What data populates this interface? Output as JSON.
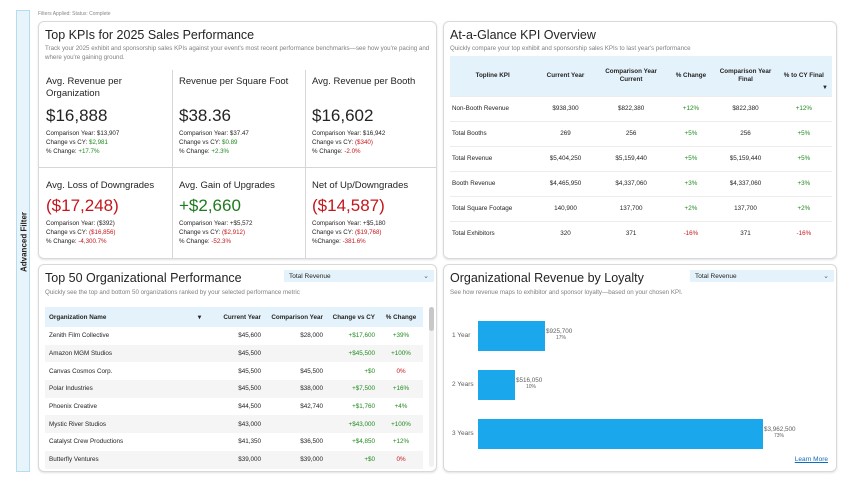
{
  "filters_applied": "Filters Applied: Status: Complete",
  "sidebar": {
    "label": "Advanced Filter"
  },
  "kpi": {
    "title": "Top KPIs for 2025 Sales Performance",
    "subtitle": "Track your 2025 exhibit and sponsorship sales KPIs against your event's most recent performance benchmarks—see how you're pacing and where you're gaining ground.",
    "cells": [
      {
        "label": "Avg. Revenue per Organization",
        "value": "$16,888",
        "comp": "Comparison Year: $13,907",
        "change_prefix": "Change vs CY: ",
        "change": "$2,981",
        "pct_prefix": "% Change: ",
        "pct": "+17.7%"
      },
      {
        "label": "Revenue per Square Foot",
        "value": "$38.36",
        "comp": "Comparison Year: $37.47",
        "change_prefix": "Change vs CY: ",
        "change": "$0.89",
        "pct_prefix": "% Change: ",
        "pct": "+2.3%"
      },
      {
        "label": "Avg. Revenue per Booth",
        "value": "$16,602",
        "comp": "Comparison Year: $16,942",
        "change_prefix": "Change vs CY: ",
        "change": "($340)",
        "pct_prefix": "% Change: ",
        "pct": "-2.0%"
      },
      {
        "label": "Avg. Loss of Downgrades",
        "value": "($17,248)",
        "comp": "Comparison Year: ($392)",
        "change_prefix": "Change vs CY: ",
        "change": "($16,856)",
        "pct_prefix": "% Change: ",
        "pct": "-4,300.7%"
      },
      {
        "label": "Avg. Gain of Upgrades",
        "value": "+$2,660",
        "comp": "Comparison Year: +$5,572",
        "change_prefix": "Change vs CY: ",
        "change": "($2,912)",
        "pct_prefix": "% Change: ",
        "pct": "-52.3%"
      },
      {
        "label": "Net of Up/Downgrades",
        "value": "($14,587)",
        "comp": "Comparison Year: +$5,180",
        "change_prefix": "Change vs CY: ",
        "change": "($19,768)",
        "pct_prefix": "%Change: ",
        "pct": "-381.6%"
      }
    ]
  },
  "glance": {
    "title": "At-a-Glance KPI Overview",
    "subtitle": "Quickly compare your top exhibit and sponsorship sales KPIs to last year's performance",
    "headers": [
      "Topline KPI",
      "Current Year",
      "Comparison Year Current",
      "% Change",
      "Comparison Year Final",
      "% to CY Final"
    ],
    "rows": [
      [
        "Non-Booth Revenue",
        "$938,300",
        "$822,380",
        "+12%",
        "$822,380",
        "+12%"
      ],
      [
        "Total Booths",
        "269",
        "256",
        "+5%",
        "256",
        "+5%"
      ],
      [
        "Total Revenue",
        "$5,404,250",
        "$5,159,440",
        "+5%",
        "$5,159,440",
        "+5%"
      ],
      [
        "Booth Revenue",
        "$4,465,950",
        "$4,337,060",
        "+3%",
        "$4,337,060",
        "+3%"
      ],
      [
        "Total Square Footage",
        "140,900",
        "137,700",
        "+2%",
        "137,700",
        "+2%"
      ],
      [
        "Total Exhibitors",
        "320",
        "371",
        "-16%",
        "371",
        "-16%"
      ]
    ]
  },
  "top50": {
    "title": "Top 50 Organizational Performance",
    "subtitle": "Quickly see the top and bottom 50 organizations ranked by your selected performance metric",
    "dropdown": "Total Revenue",
    "headers": [
      "Organization Name",
      "Current Year",
      "Comparison Year",
      "Change vs CY",
      "% Change"
    ],
    "rows": [
      [
        "Zenith Film Collective",
        "$45,600",
        "$28,000",
        "+$17,600",
        "+39%"
      ],
      [
        "Amazon MGM Studios",
        "$45,500",
        "",
        "+$45,500",
        "+100%"
      ],
      [
        "Canvas Cosmos Corp.",
        "$45,500",
        "$45,500",
        "+$0",
        "0%"
      ],
      [
        "Polar Industries",
        "$45,500",
        "$38,000",
        "+$7,500",
        "+16%"
      ],
      [
        "Phoenix Creative",
        "$44,500",
        "$42,740",
        "+$1,760",
        "+4%"
      ],
      [
        "Mystic River Studios",
        "$43,000",
        "",
        "+$43,000",
        "+100%"
      ],
      [
        "Catalyst Crew Productions",
        "$41,350",
        "$36,500",
        "+$4,850",
        "+12%"
      ],
      [
        "Butterfly Ventures",
        "$39,000",
        "$39,000",
        "+$0",
        "0%"
      ]
    ]
  },
  "loyalty": {
    "title": "Organizational Revenue by Loyalty",
    "subtitle": "See how revenue maps to exhibitor and sponsor loyalty—based on your chosen KPI.",
    "dropdown": "Total Revenue",
    "learn_more": "Learn More"
  },
  "chart_data": {
    "type": "bar",
    "orientation": "horizontal",
    "title": "Organizational Revenue by Loyalty",
    "categories": [
      "1 Year",
      "2 Years",
      "3 Years"
    ],
    "values": [
      925700,
      516050,
      3962500
    ],
    "value_labels": [
      "$925,700",
      "$516,050",
      "$3,962,500"
    ],
    "pct_labels": [
      "17%",
      "10%",
      "73%"
    ],
    "xlim": [
      0,
      4000000
    ],
    "bar_color": "#1aa7ec"
  }
}
